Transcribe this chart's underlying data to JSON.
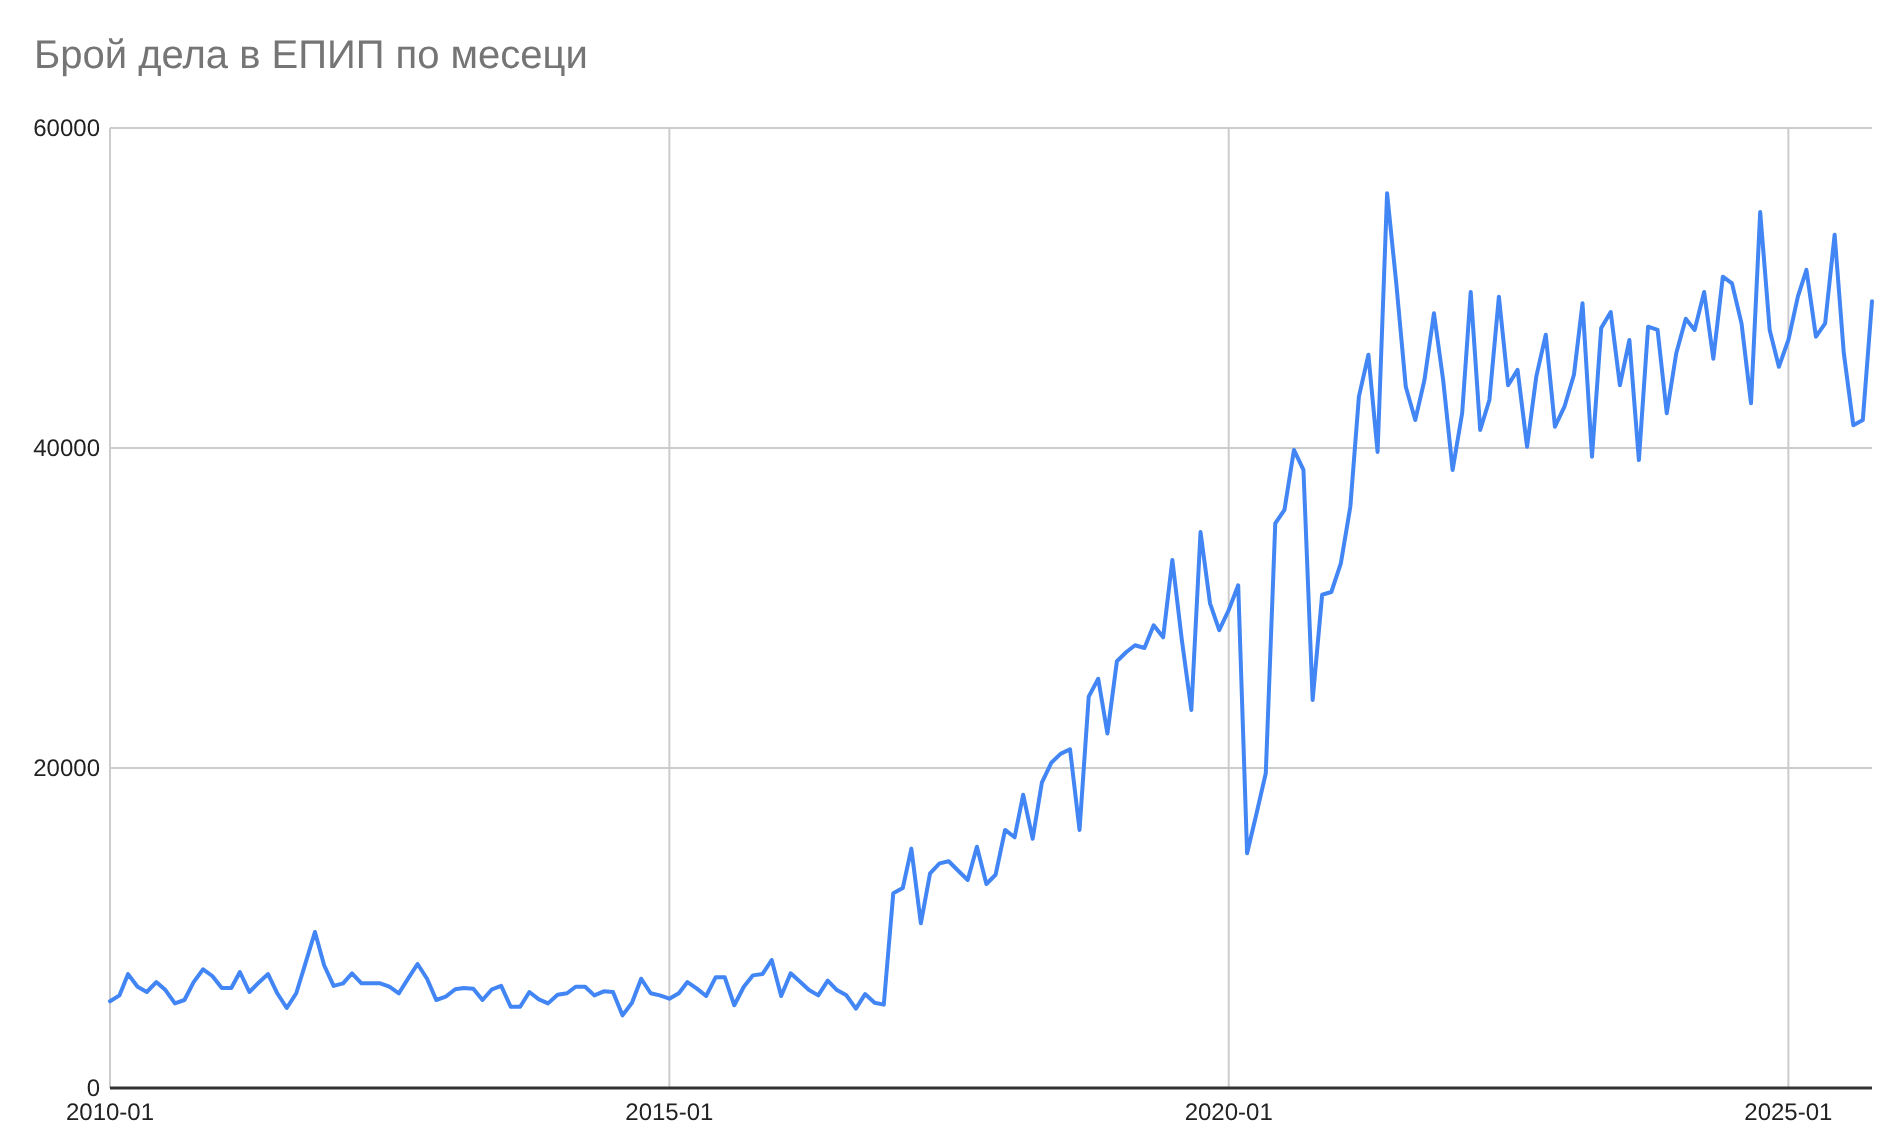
{
  "chart_data": {
    "type": "line",
    "title": "Брой дела в ЕПИП по месеци",
    "x": [
      "2010-01",
      "2010-02",
      "2010-03",
      "2010-04",
      "2010-05",
      "2010-06",
      "2010-07",
      "2010-08",
      "2010-09",
      "2010-10",
      "2010-11",
      "2010-12",
      "2011-01",
      "2011-02",
      "2011-03",
      "2011-04",
      "2011-05",
      "2011-06",
      "2011-07",
      "2011-08",
      "2011-09",
      "2011-10",
      "2011-11",
      "2011-12",
      "2012-01",
      "2012-02",
      "2012-03",
      "2012-04",
      "2012-05",
      "2012-06",
      "2012-07",
      "2012-08",
      "2012-09",
      "2012-10",
      "2012-11",
      "2012-12",
      "2013-01",
      "2013-02",
      "2013-03",
      "2013-04",
      "2013-05",
      "2013-06",
      "2013-07",
      "2013-08",
      "2013-09",
      "2013-10",
      "2013-11",
      "2013-12",
      "2014-01",
      "2014-02",
      "2014-03",
      "2014-04",
      "2014-05",
      "2014-06",
      "2014-07",
      "2014-08",
      "2014-09",
      "2014-10",
      "2014-11",
      "2014-12",
      "2015-01",
      "2015-02",
      "2015-03",
      "2015-04",
      "2015-05",
      "2015-06",
      "2015-07",
      "2015-08",
      "2015-09",
      "2015-10",
      "2015-11",
      "2015-12",
      "2016-01",
      "2016-02",
      "2016-03",
      "2016-04",
      "2016-05",
      "2016-06",
      "2016-07",
      "2016-08",
      "2016-09",
      "2016-10",
      "2016-11",
      "2016-12",
      "2017-01",
      "2017-02",
      "2017-03",
      "2017-04",
      "2017-05",
      "2017-06",
      "2017-07",
      "2017-08",
      "2017-09",
      "2017-10",
      "2017-11",
      "2017-12",
      "2018-01",
      "2018-02",
      "2018-03",
      "2018-04",
      "2018-05",
      "2018-06",
      "2018-07",
      "2018-08",
      "2018-09",
      "2018-10",
      "2018-11",
      "2018-12",
      "2019-01",
      "2019-02",
      "2019-03",
      "2019-04",
      "2019-05",
      "2019-06",
      "2019-07",
      "2019-08",
      "2019-09",
      "2019-10",
      "2019-11",
      "2019-12",
      "2020-01",
      "2020-02",
      "2020-03",
      "2020-04",
      "2020-05",
      "2020-06",
      "2020-07",
      "2020-08",
      "2020-09",
      "2020-10",
      "2020-11",
      "2020-12",
      "2021-01",
      "2021-02",
      "2021-03",
      "2021-04",
      "2021-05",
      "2021-06",
      "2021-07",
      "2021-08",
      "2021-09",
      "2021-10",
      "2021-11",
      "2021-12",
      "2022-01",
      "2022-02",
      "2022-03",
      "2022-04",
      "2022-05",
      "2022-06",
      "2022-07",
      "2022-08",
      "2022-09",
      "2022-10",
      "2022-11",
      "2022-12",
      "2023-01",
      "2023-02",
      "2023-03",
      "2023-04",
      "2023-05",
      "2023-06",
      "2023-07",
      "2023-08",
      "2023-09",
      "2023-10",
      "2023-11",
      "2023-12",
      "2024-01",
      "2024-02",
      "2024-03",
      "2024-04",
      "2024-05",
      "2024-06",
      "2024-07",
      "2024-08",
      "2024-09",
      "2024-10",
      "2024-11",
      "2024-12",
      "2025-01",
      "2025-02",
      "2025-03",
      "2025-04",
      "2025-05",
      "2025-06",
      "2025-07",
      "2025-08",
      "2025-09",
      "2025-10"
    ],
    "series": [
      {
        "color": "#4285f4",
        "values": [
          5420,
          5790,
          7120,
          6330,
          6000,
          6620,
          6120,
          5290,
          5500,
          6620,
          7420,
          7000,
          6250,
          6250,
          7250,
          6000,
          6580,
          7120,
          5920,
          5000,
          5920,
          7790,
          9750,
          7670,
          6380,
          6540,
          7170,
          6540,
          6540,
          6540,
          6330,
          5920,
          6870,
          7750,
          6830,
          5500,
          5710,
          6170,
          6250,
          6210,
          5500,
          6170,
          6380,
          5080,
          5080,
          6000,
          5540,
          5290,
          5830,
          5920,
          6330,
          6330,
          5790,
          6040,
          6000,
          4540,
          5330,
          6830,
          5920,
          5790,
          5580,
          5920,
          6620,
          6210,
          5750,
          6920,
          6920,
          5170,
          6330,
          7040,
          7120,
          8000,
          5750,
          7170,
          6670,
          6120,
          5790,
          6710,
          6120,
          5790,
          4960,
          5870,
          5330,
          5210,
          12170,
          12500,
          14960,
          10290,
          13420,
          14040,
          14170,
          13580,
          13000,
          15080,
          12750,
          13330,
          16130,
          15670,
          18330,
          15580,
          19080,
          20330,
          20880,
          21170,
          16130,
          24460,
          25580,
          22160,
          26670,
          27250,
          27670,
          27500,
          28920,
          28170,
          33000,
          28000,
          23630,
          34750,
          30290,
          28620,
          29870,
          31420,
          14670,
          17170,
          19670,
          35290,
          36130,
          39880,
          38630,
          24250,
          30830,
          31000,
          32790,
          36330,
          43210,
          45830,
          39750,
          55920,
          50290,
          43830,
          41750,
          44250,
          48420,
          44250,
          38630,
          42170,
          49750,
          41130,
          43000,
          49460,
          43920,
          44880,
          40080,
          44460,
          47080,
          41330,
          42580,
          44580,
          49040,
          39460,
          47500,
          48500,
          43920,
          46750,
          39250,
          47580,
          47380,
          42170,
          45920,
          48080,
          47380,
          49750,
          45580,
          50710,
          50290,
          47790,
          42790,
          54750,
          47380,
          45080,
          46750,
          49460,
          51130,
          46960,
          47790,
          53330,
          45920,
          41420,
          41750,
          49170
        ]
      }
    ],
    "xlim": [
      "2010-01",
      "2025-10"
    ],
    "xticks": [
      "2010-01",
      "2015-01",
      "2020-01",
      "2025-01"
    ],
    "ylim": [
      0,
      60000
    ],
    "yticks": [
      0,
      20000,
      40000,
      60000
    ],
    "grid": true,
    "marker": "none",
    "line_style": "solid"
  }
}
